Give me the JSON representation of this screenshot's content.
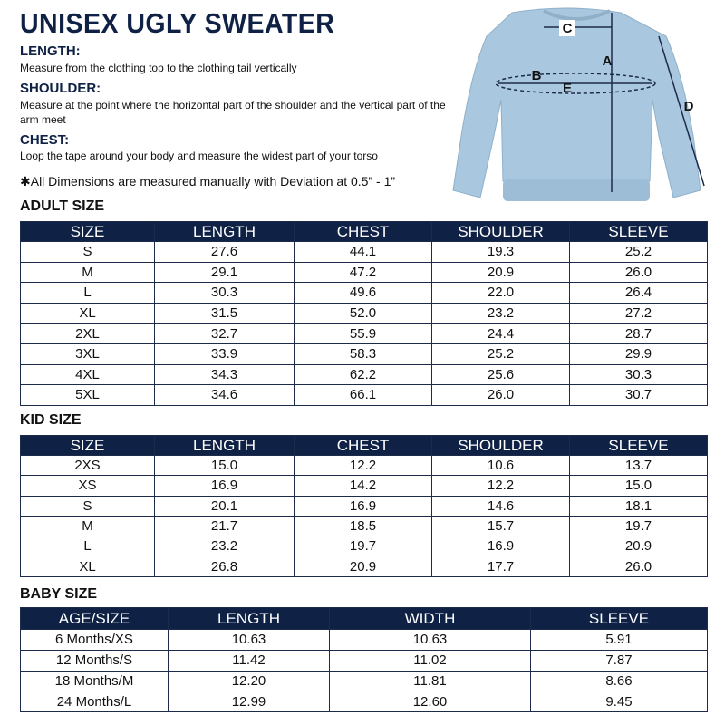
{
  "header": {
    "title": "UNISEX UGLY SWEATER"
  },
  "definitions": [
    {
      "term": "LENGTH:",
      "text": "Measure from the clothing top to the clothing tail vertically"
    },
    {
      "term": "SHOULDER:",
      "text": "Measure at the point where the horizontal part of the shoulder and the vertical part of the arm meet"
    },
    {
      "term": "CHEST:",
      "text": "Loop the tape around your body and measure the widest part of your torso"
    }
  ],
  "note": "✱All Dimensions are measured manually with Deviation at 0.5” - 1”",
  "diagram": {
    "labels": {
      "a": "A",
      "b": "B",
      "c": "C",
      "d": "D",
      "e": "E"
    }
  },
  "tables": {
    "adult": {
      "title": "ADULT SIZE",
      "columns": [
        "SIZE",
        "LENGTH",
        "CHEST",
        "SHOULDER",
        "SLEEVE"
      ],
      "rows": [
        [
          "S",
          "27.6",
          "44.1",
          "19.3",
          "25.2"
        ],
        [
          "M",
          "29.1",
          "47.2",
          "20.9",
          "26.0"
        ],
        [
          "L",
          "30.3",
          "49.6",
          "22.0",
          "26.4"
        ],
        [
          "XL",
          "31.5",
          "52.0",
          "23.2",
          "27.2"
        ],
        [
          "2XL",
          "32.7",
          "55.9",
          "24.4",
          "28.7"
        ],
        [
          "3XL",
          "33.9",
          "58.3",
          "25.2",
          "29.9"
        ],
        [
          "4XL",
          "34.3",
          "62.2",
          "25.6",
          "30.3"
        ],
        [
          "5XL",
          "34.6",
          "66.1",
          "26.0",
          "30.7"
        ]
      ]
    },
    "kid": {
      "title": "KID SIZE",
      "columns": [
        "SIZE",
        "LENGTH",
        "CHEST",
        "SHOULDER",
        "SLEEVE"
      ],
      "rows": [
        [
          "2XS",
          "15.0",
          "12.2",
          "10.6",
          "13.7"
        ],
        [
          "XS",
          "16.9",
          "14.2",
          "12.2",
          "15.0"
        ],
        [
          "S",
          "20.1",
          "16.9",
          "14.6",
          "18.1"
        ],
        [
          "M",
          "21.7",
          "18.5",
          "15.7",
          "19.7"
        ],
        [
          "L",
          "23.2",
          "19.7",
          "16.9",
          "20.9"
        ],
        [
          "XL",
          "26.8",
          "20.9",
          "17.7",
          "26.0"
        ]
      ]
    },
    "baby": {
      "title": "BABY SIZE",
      "columns": [
        "AGE/SIZE",
        "LENGTH",
        "WIDTH",
        "SLEEVE"
      ],
      "rows": [
        [
          "6 Months/XS",
          "10.63",
          "10.63",
          "5.91"
        ],
        [
          "12 Months/S",
          "11.42",
          "11.02",
          "7.87"
        ],
        [
          "18 Months/M",
          "12.20",
          "11.81",
          "8.66"
        ],
        [
          "24 Months/L",
          "12.99",
          "12.60",
          "9.45"
        ]
      ]
    }
  }
}
